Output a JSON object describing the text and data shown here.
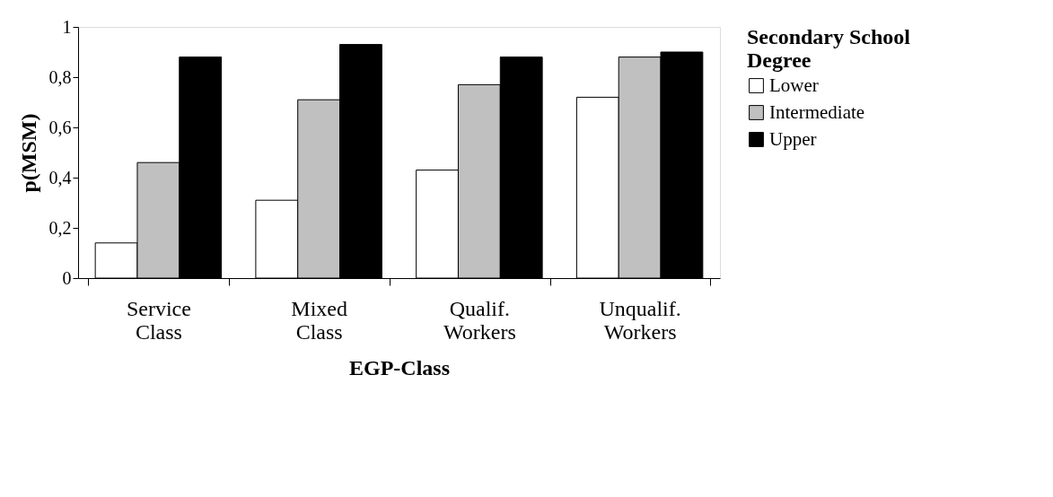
{
  "chart_data": {
    "type": "bar",
    "xlabel": "EGP-Class",
    "ylabel": "p(MSM)",
    "legend_title": "Secondary School Degree",
    "legend": "right",
    "grid": false,
    "categories": [
      "Service Class",
      "Mixed Class",
      "Qualif. Workers",
      "Unqualif. Workers"
    ],
    "ylim": [
      0,
      1
    ],
    "yticks": [
      0,
      {
        "value": 0.2,
        "label": "0,2"
      },
      {
        "value": 0.4,
        "label": "0,4"
      },
      {
        "value": 0.6,
        "label": "0,6"
      },
      {
        "value": 0.8,
        "label": "0,8"
      },
      1
    ],
    "series": [
      {
        "name": "Lower",
        "color": "#ffffff",
        "values": [
          0.14,
          0.31,
          0.43,
          0.72
        ]
      },
      {
        "name": "Intermediate",
        "color": "#c0c0c0",
        "values": [
          0.46,
          0.71,
          0.77,
          0.88
        ]
      },
      {
        "name": "Upper",
        "color": "#000000",
        "values": [
          0.88,
          0.93,
          0.88,
          0.9
        ]
      }
    ]
  }
}
